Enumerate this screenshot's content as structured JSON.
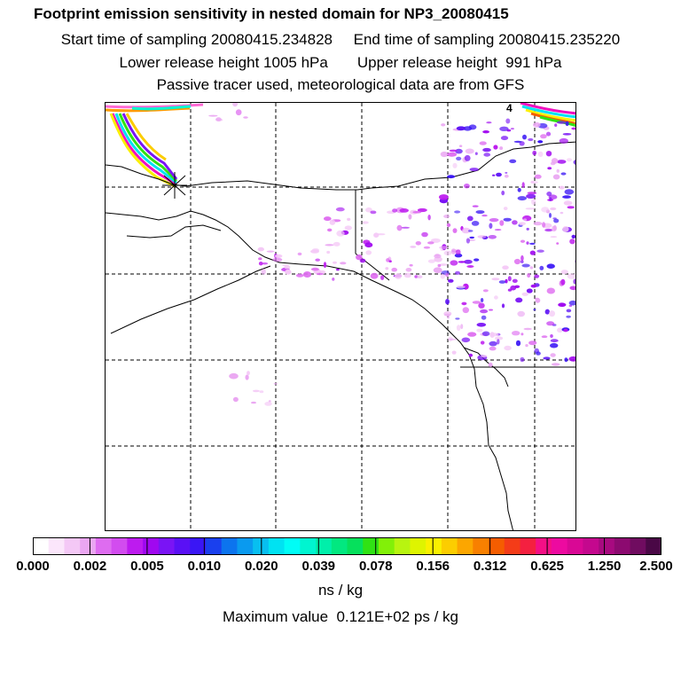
{
  "titles": [
    "Footprint emission sensitivity in nested domain for NP3_20080415",
    "Start time of sampling 20080415.234828     End time of sampling 20080415.235220",
    "Lower release height 1005 hPa       Upper release height  991 hPa",
    "Passive tracer used, meteorological data are from GFS"
  ],
  "map": {
    "corner_label": "4",
    "release_marker": "receptor-star"
  },
  "colorbar": {
    "ticks": [
      "0.000",
      "0.002",
      "0.005",
      "0.010",
      "0.020",
      "0.039",
      "0.078",
      "0.156",
      "0.312",
      "0.625",
      "1.250",
      "2.500"
    ],
    "colors": [
      "#ffffff",
      "#fbe6fb",
      "#f4c8f6",
      "#eaa6f2",
      "#de6cf0",
      "#d24cef",
      "#bd1bef",
      "#a008f0",
      "#7a14f5",
      "#5a10f5",
      "#3a16f5",
      "#1a40ee",
      "#0c74ee",
      "#0a9aef",
      "#08bff0",
      "#00e2f2",
      "#00fdf6",
      "#00f5d0",
      "#00efaa",
      "#02e880",
      "#06e05c",
      "#30e214",
      "#82f008",
      "#b8f410",
      "#def400",
      "#faf000",
      "#fccd00",
      "#fca600",
      "#f88000",
      "#f55d00",
      "#f43c18",
      "#f42040",
      "#f40f86",
      "#ed0aa0",
      "#d90895",
      "#c4088e",
      "#a80a80",
      "#8c0a70",
      "#700c60",
      "#4a0846"
    ],
    "units": "ns / kg"
  },
  "max_value_text": "Maximum value  0.121E+02 ps / kg"
}
